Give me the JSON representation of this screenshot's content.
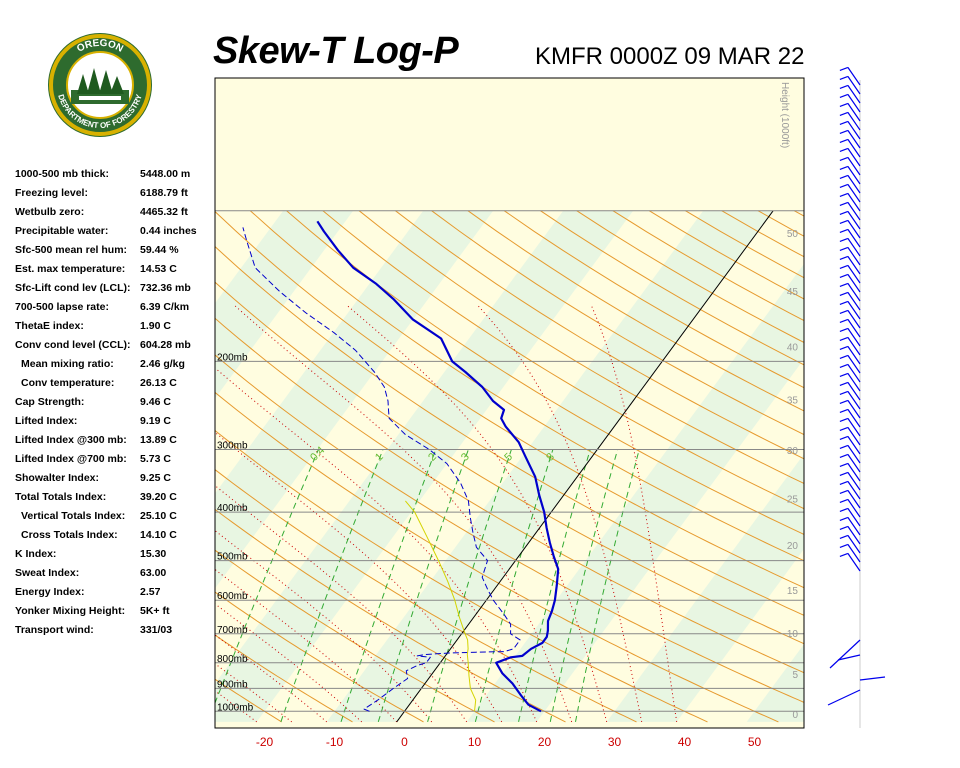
{
  "header": {
    "title": "Skew-T Log-P",
    "station": "KMFR 0000Z 09 MAR 22",
    "logo": {
      "text_top": "OREGON",
      "text_bottom": "DEPARTMENT OF FORESTRY"
    }
  },
  "indices": [
    {
      "label": "1000-500 mb thick:",
      "value": "5448.00 m"
    },
    {
      "label": "Freezing level:",
      "value": "6188.79 ft"
    },
    {
      "label": "Wetbulb zero:",
      "value": "4465.32 ft"
    },
    {
      "label": "Precipitable water:",
      "value": "0.44 inches"
    },
    {
      "label": "Sfc-500 mean rel hum:",
      "value": "59.44 %"
    },
    {
      "label": "Est. max temperature:",
      "value": "14.53 C"
    },
    {
      "label": "Sfc-Lift cond lev (LCL):",
      "value": "732.36 mb"
    },
    {
      "label": "700-500 lapse rate:",
      "value": "6.39 C/km"
    },
    {
      "label": "ThetaE index:",
      "value": "1.90 C"
    },
    {
      "label": "Conv cond level (CCL):",
      "value": "604.28 mb"
    },
    {
      "label": "Mean mixing ratio:",
      "value": "2.46 g/kg",
      "sub": true
    },
    {
      "label": "Conv temperature:",
      "value": "26.13 C",
      "sub": true
    },
    {
      "label": "Cap Strength:",
      "value": "9.46 C"
    },
    {
      "label": "Lifted Index:",
      "value": "9.19 C"
    },
    {
      "label": "Lifted Index @300 mb:",
      "value": "13.89 C"
    },
    {
      "label": "Lifted Index @700 mb:",
      "value": "5.73 C"
    },
    {
      "label": "Showalter Index:",
      "value": "9.25 C"
    },
    {
      "label": "Total Totals Index:",
      "value": "39.20 C"
    },
    {
      "label": "Vertical Totals Index:",
      "value": "25.10 C",
      "sub": true
    },
    {
      "label": "Cross Totals Index:",
      "value": "14.10 C",
      "sub": true
    },
    {
      "label": "K Index:",
      "value": "15.30"
    },
    {
      "label": "Sweat Index:",
      "value": "63.00"
    },
    {
      "label": "Energy Index:",
      "value": "2.57"
    },
    {
      "label": "Yonker Mixing Height:",
      "value": "5K+ ft"
    },
    {
      "label": "Transport wind:",
      "value": "331/03"
    }
  ],
  "chart_data": {
    "type": "line",
    "title": "Skew-T Log-P",
    "x_ticks": [
      "-20",
      "-10",
      "0",
      "10",
      "20",
      "30",
      "40",
      "50"
    ],
    "x_tick_values": [
      -20,
      -10,
      0,
      10,
      20,
      30,
      40,
      50
    ],
    "xlim": [
      -29,
      56
    ],
    "pressure_levels": [
      {
        "p": 200,
        "label": "200mb"
      },
      {
        "p": 300,
        "label": "300mb"
      },
      {
        "p": 400,
        "label": "400mb"
      },
      {
        "p": 500,
        "label": "500mb"
      },
      {
        "p": 600,
        "label": "600mb"
      },
      {
        "p": 700,
        "label": "700mb"
      },
      {
        "p": 800,
        "label": "800mb"
      },
      {
        "p": 900,
        "label": "900mb"
      },
      {
        "p": 1000,
        "label": "1000mb"
      }
    ],
    "ylim_mb": [
      100,
      1050
    ],
    "height_axis": {
      "label": "Height (1000ft)",
      "ticks": [
        {
          "label": "0",
          "kft": 0
        },
        {
          "label": "5",
          "kft": 5
        },
        {
          "label": "10",
          "kft": 10
        },
        {
          "label": "15",
          "kft": 15
        },
        {
          "label": "20",
          "kft": 20
        },
        {
          "label": "25",
          "kft": 25
        },
        {
          "label": "30",
          "kft": 30
        },
        {
          "label": "35",
          "kft": 35
        },
        {
          "label": "40",
          "kft": 40
        },
        {
          "label": "45",
          "kft": 45
        },
        {
          "label": "50",
          "kft": 50
        }
      ]
    },
    "mixing_ratio_labels": [
      {
        "label": "0.4",
        "value": 0.4
      },
      {
        "label": "1",
        "value": 1
      },
      {
        "label": "2",
        "value": 2
      },
      {
        "label": "3",
        "value": 3
      },
      {
        "label": "5",
        "value": 5
      },
      {
        "label": "8",
        "value": 8
      }
    ],
    "series": [
      {
        "role": "temperature",
        "color": "#0000cc",
        "points": [
          {
            "p": 1000,
            "t": 19.5
          },
          {
            "p": 970,
            "t": 17
          },
          {
            "p": 930,
            "t": 15
          },
          {
            "p": 880,
            "t": 12.5
          },
          {
            "p": 840,
            "t": 10
          },
          {
            "p": 800,
            "t": 8
          },
          {
            "p": 780,
            "t": 9.5
          },
          {
            "p": 775,
            "t": 11
          },
          {
            "p": 750,
            "t": 11.5
          },
          {
            "p": 730,
            "t": 12.5
          },
          {
            "p": 710,
            "t": 12.5
          },
          {
            "p": 690,
            "t": 12
          },
          {
            "p": 660,
            "t": 11
          },
          {
            "p": 630,
            "t": 10.5
          },
          {
            "p": 600,
            "t": 9.8
          },
          {
            "p": 560,
            "t": 8.5
          },
          {
            "p": 520,
            "t": 7
          },
          {
            "p": 490,
            "t": 5
          },
          {
            "p": 460,
            "t": 3
          },
          {
            "p": 430,
            "t": 1
          },
          {
            "p": 400,
            "t": -1
          },
          {
            "p": 370,
            "t": -3.5
          },
          {
            "p": 340,
            "t": -6
          },
          {
            "p": 310,
            "t": -9.5
          },
          {
            "p": 290,
            "t": -12
          },
          {
            "p": 270,
            "t": -15.5
          },
          {
            "p": 260,
            "t": -17
          },
          {
            "p": 250,
            "t": -17.5
          },
          {
            "p": 240,
            "t": -20
          },
          {
            "p": 225,
            "t": -23
          },
          {
            "p": 210,
            "t": -27
          },
          {
            "p": 200,
            "t": -30
          },
          {
            "p": 180,
            "t": -34
          },
          {
            "p": 165,
            "t": -40
          },
          {
            "p": 150,
            "t": -45
          },
          {
            "p": 140,
            "t": -49
          },
          {
            "p": 130,
            "t": -54
          },
          {
            "p": 120,
            "t": -58
          },
          {
            "p": 110,
            "t": -62
          },
          {
            "p": 105,
            "t": -64
          }
        ]
      },
      {
        "role": "dewpoint",
        "color": "#0000cc",
        "dashed": true,
        "points": [
          {
            "p": 1000,
            "t": -5
          },
          {
            "p": 990,
            "t": -6
          },
          {
            "p": 950,
            "t": -5
          },
          {
            "p": 900,
            "t": -4
          },
          {
            "p": 860,
            "t": -3
          },
          {
            "p": 830,
            "t": -4
          },
          {
            "p": 810,
            "t": -3
          },
          {
            "p": 800,
            "t": -2
          },
          {
            "p": 780,
            "t": -2
          },
          {
            "p": 775,
            "t": -4
          },
          {
            "p": 770,
            "t": -3
          },
          {
            "p": 765,
            "t": 0
          },
          {
            "p": 762,
            "t": 4
          },
          {
            "p": 760,
            "t": 8
          },
          {
            "p": 750,
            "t": 9
          },
          {
            "p": 720,
            "t": 9
          },
          {
            "p": 700,
            "t": 7
          },
          {
            "p": 670,
            "t": 6
          },
          {
            "p": 640,
            "t": 4
          },
          {
            "p": 600,
            "t": 1
          },
          {
            "p": 570,
            "t": -1
          },
          {
            "p": 540,
            "t": -3
          },
          {
            "p": 500,
            "t": -4
          },
          {
            "p": 470,
            "t": -7
          },
          {
            "p": 440,
            "t": -9
          },
          {
            "p": 410,
            "t": -11
          },
          {
            "p": 380,
            "t": -13
          },
          {
            "p": 350,
            "t": -16
          },
          {
            "p": 320,
            "t": -20
          },
          {
            "p": 300,
            "t": -24
          },
          {
            "p": 280,
            "t": -29
          },
          {
            "p": 260,
            "t": -33
          },
          {
            "p": 250,
            "t": -34
          },
          {
            "p": 240,
            "t": -35
          },
          {
            "p": 225,
            "t": -37
          },
          {
            "p": 210,
            "t": -40
          },
          {
            "p": 190,
            "t": -45
          },
          {
            "p": 175,
            "t": -50
          },
          {
            "p": 160,
            "t": -56
          },
          {
            "p": 145,
            "t": -62
          },
          {
            "p": 130,
            "t": -68
          },
          {
            "p": 115,
            "t": -72
          },
          {
            "p": 108,
            "t": -74
          }
        ]
      },
      {
        "role": "parcel",
        "color": "#d4d400",
        "points": [
          {
            "p": 1000,
            "t": 10
          },
          {
            "p": 950,
            "t": 9
          },
          {
            "p": 900,
            "t": 7
          },
          {
            "p": 850,
            "t": 5.5
          },
          {
            "p": 800,
            "t": 4
          },
          {
            "p": 770,
            "t": 3
          },
          {
            "p": 750,
            "t": 2.5
          },
          {
            "p": 720,
            "t": 1.5
          },
          {
            "p": 700,
            "t": 0.5
          },
          {
            "p": 650,
            "t": -2
          },
          {
            "p": 600,
            "t": -4.5
          },
          {
            "p": 550,
            "t": -7.5
          },
          {
            "p": 500,
            "t": -11
          },
          {
            "p": 450,
            "t": -15
          },
          {
            "p": 400,
            "t": -19.5
          },
          {
            "p": 380,
            "t": -22
          }
        ]
      }
    ],
    "wind_barbs": "upper-air wind barbs plotted along right edge"
  }
}
